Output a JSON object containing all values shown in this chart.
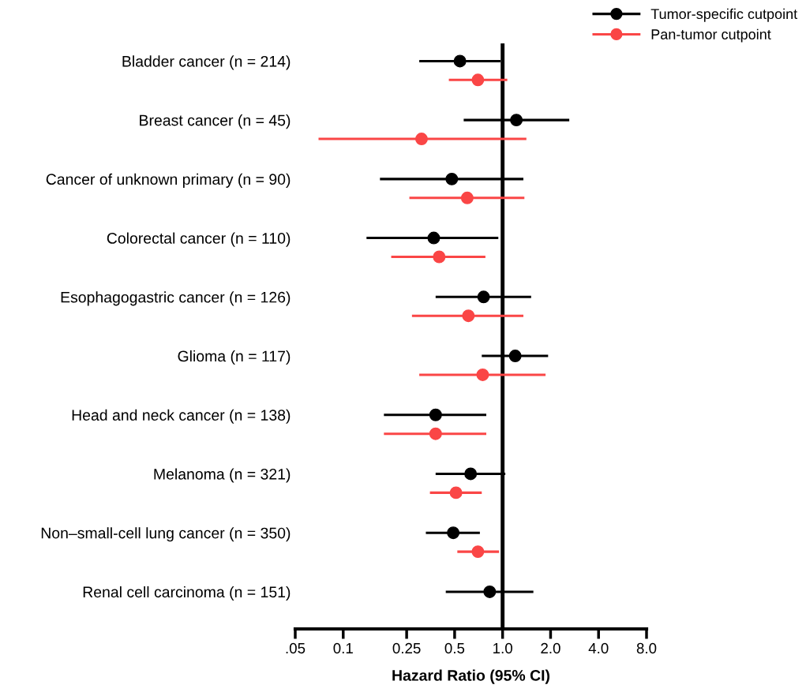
{
  "chart_data": {
    "type": "scatter",
    "orientation": "horizontal",
    "log": "x",
    "xlabel": "Hazard Ratio (95% CI)",
    "categories": [
      "Bladder cancer (n = 214)",
      "Breast cancer (n = 45)",
      "Cancer of unknown primary (n = 90)",
      "Colorectal cancer (n = 110)",
      "Esophagogastric cancer (n = 126)",
      "Glioma (n = 117)",
      "Head and neck cancer (n = 138)",
      "Melanoma (n = 321)",
      "Non–small-cell lung cancer (n = 350)",
      "Renal cell carcinoma (n = 151)"
    ],
    "series": [
      {
        "name": "Tumor-specific cutpoint",
        "color": "#000000",
        "values": [
          0.54,
          1.22,
          0.48,
          0.37,
          0.76,
          1.2,
          0.38,
          0.63,
          0.49,
          0.83
        ],
        "errors": [
          [
            0.3,
            0.97
          ],
          [
            0.57,
            2.62
          ],
          [
            0.17,
            1.35
          ],
          [
            0.14,
            0.94
          ],
          [
            0.38,
            1.51
          ],
          [
            0.74,
            1.93
          ],
          [
            0.18,
            0.79
          ],
          [
            0.38,
            1.04
          ],
          [
            0.33,
            0.72
          ],
          [
            0.44,
            1.56
          ]
        ]
      },
      {
        "name": "Pan-tumor cutpoint",
        "color": "#fa4646",
        "values": [
          0.7,
          0.31,
          0.6,
          0.4,
          0.61,
          0.75,
          0.38,
          0.51,
          0.7,
          null
        ],
        "errors": [
          [
            0.46,
            1.07
          ],
          [
            0.07,
            1.41
          ],
          [
            0.26,
            1.37
          ],
          [
            0.2,
            0.78
          ],
          [
            0.27,
            1.35
          ],
          [
            0.3,
            1.86
          ],
          [
            0.18,
            0.79
          ],
          [
            0.35,
            0.74
          ],
          [
            0.52,
            0.95
          ],
          null
        ]
      }
    ],
    "xlim": [
      0.05,
      8
    ],
    "xticks": [
      {
        "value": 0.05,
        "label": ".05"
      },
      0.1,
      0.25,
      0.5,
      {
        "value": 1,
        "label": "1.0"
      },
      {
        "value": 2,
        "label": "2.0"
      },
      {
        "value": 4,
        "label": "4.0"
      },
      {
        "value": 8,
        "label": "8.0"
      }
    ],
    "ref_lines": [
      {
        "axis": "x",
        "value": 1,
        "color": "#000000",
        "line_style": "solid"
      }
    ],
    "marker": "circle",
    "line_style": "solid",
    "grid": false,
    "legend": "top right"
  }
}
